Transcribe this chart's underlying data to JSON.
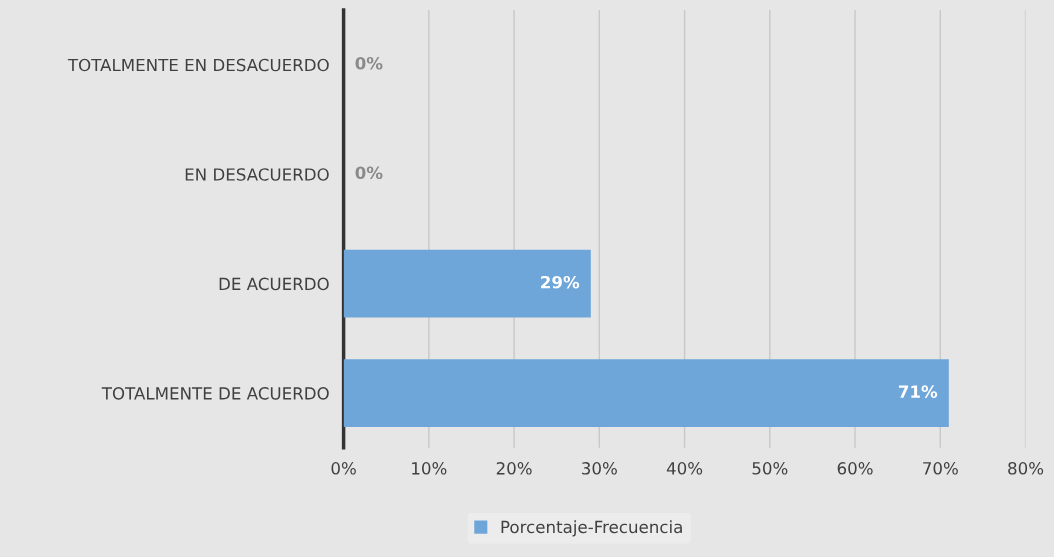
{
  "chart_data": {
    "type": "bar",
    "orientation": "horizontal",
    "categories": [
      "TOTALMENTE EN DESACUERDO",
      "EN DESACUERDO",
      "DE ACUERDO",
      "TOTALMENTE DE ACUERDO"
    ],
    "series": [
      {
        "name": "Porcentaje-Frecuencia",
        "color": "#6fa6d9",
        "values": [
          0,
          0,
          29,
          71
        ],
        "value_labels": [
          "0%",
          "0%",
          "29%",
          "71%"
        ]
      }
    ],
    "xlim": [
      0,
      80
    ],
    "xticks": [
      {
        "value": 0,
        "label": "0%"
      },
      {
        "value": 10,
        "label": "10%"
      },
      {
        "value": 20,
        "label": "20%"
      },
      {
        "value": 30,
        "label": "30%"
      },
      {
        "value": 40,
        "label": "40%"
      },
      {
        "value": 50,
        "label": "50%"
      },
      {
        "value": 60,
        "label": "60%"
      },
      {
        "value": 70,
        "label": "70%"
      },
      {
        "value": 80,
        "label": "80%"
      }
    ],
    "grid": "x",
    "legend": "bottom"
  }
}
